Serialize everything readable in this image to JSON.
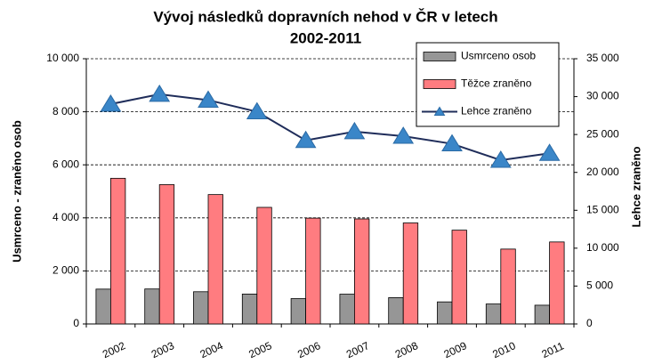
{
  "chart_data": {
    "type": "bar-line",
    "title": [
      "Vývoj následků dopravních nehod v ČR v letech",
      "2002-2011"
    ],
    "y_label": "Usmrceno - zraněno osob",
    "y2_label": "Lehce zraněno",
    "categories": [
      "2002",
      "2003",
      "2004",
      "2005",
      "2006",
      "2007",
      "2008",
      "2009",
      "2010",
      "2011"
    ],
    "series": [
      {
        "name": "Usmrceno osob",
        "type": "bar",
        "color": "#969696",
        "values": [
          1314,
          1319,
          1215,
          1127,
          956,
          1123,
          992,
          832,
          753,
          707
        ]
      },
      {
        "name": "Těžce zraněno",
        "type": "bar",
        "color": "#ff7c80",
        "values": [
          5492,
          5253,
          4878,
          4396,
          3990,
          3960,
          3809,
          3536,
          2823,
          3092
        ]
      },
      {
        "name": "Lehce zraněno",
        "type": "line",
        "axis": "y2",
        "color": "#1f2d5a",
        "marker_color": "#3a86c8",
        "values": [
          29013,
          30312,
          29543,
          28007,
          24231,
          25382,
          24776,
          23777,
          21610,
          22519
        ]
      }
    ],
    "ylim": [
      0,
      10000
    ],
    "yticks": [
      0,
      {
        "value": 2000,
        "label": "2 000"
      },
      {
        "value": 4000,
        "label": "4 000"
      },
      {
        "value": 6000,
        "label": "6 000"
      },
      {
        "value": 8000,
        "label": "8 000"
      },
      {
        "value": 10000,
        "label": "10 000"
      }
    ],
    "y2lim": [
      0,
      35000
    ],
    "y2ticks": [
      0,
      {
        "value": 5000,
        "label": "5 000"
      },
      {
        "value": 10000,
        "label": "10 000"
      },
      {
        "value": 15000,
        "label": "15 000"
      },
      {
        "value": 20000,
        "label": "20 000"
      },
      {
        "value": 25000,
        "label": "25 000"
      },
      {
        "value": 30000,
        "label": "30 000"
      },
      {
        "value": 35000,
        "label": "35 000"
      }
    ],
    "grid": true,
    "legend": "top-right"
  }
}
